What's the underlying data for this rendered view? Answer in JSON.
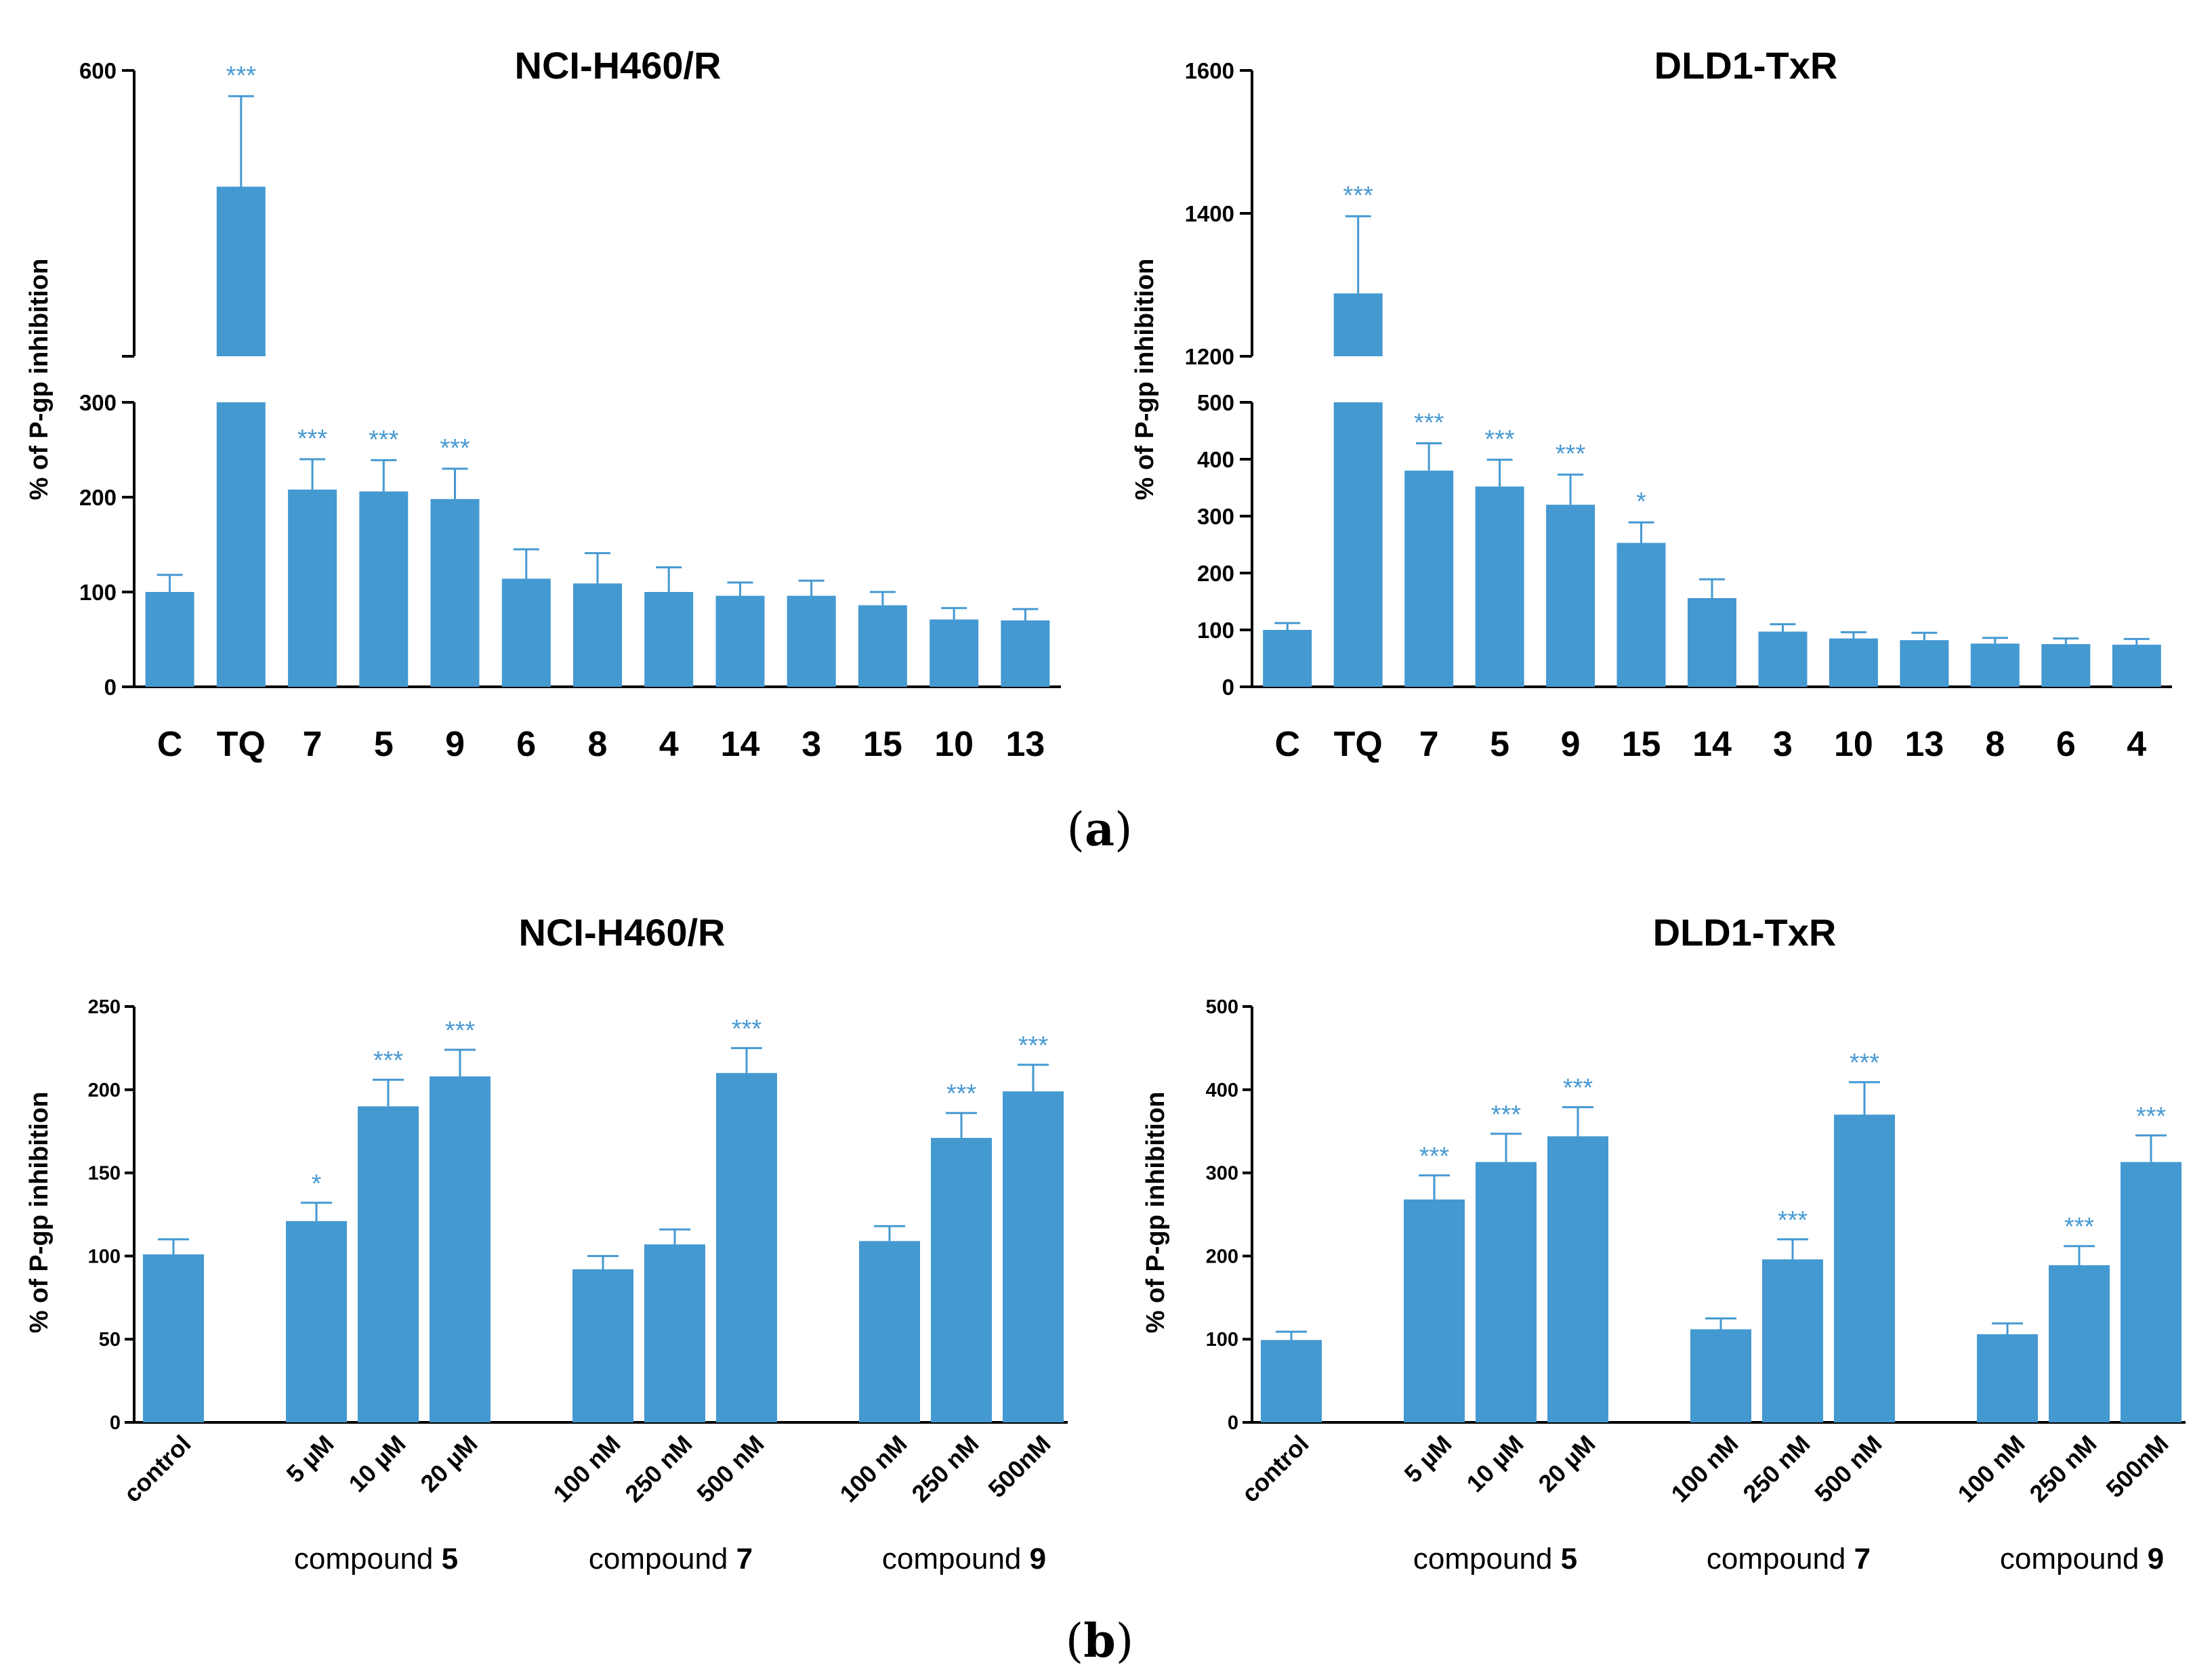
{
  "panel_labels": {
    "a": {
      "open": "(",
      "letter": "a",
      "close": ")"
    },
    "b": {
      "open": "(",
      "letter": "b",
      "close": ")"
    }
  },
  "colors": {
    "bar": "#4499d1",
    "significance": "#4a9ad3",
    "axis": "#000000"
  },
  "chart_data": [
    {
      "id": "a-left",
      "type": "bar",
      "title": "NCI-H460/R",
      "ylabel": "% of P-gp inhibition",
      "broken_axis": true,
      "lower_range": [
        0,
        300
      ],
      "lower_ticks": [
        "0",
        "100",
        "200",
        "300"
      ],
      "upper_range": [
        300,
        600
      ],
      "upper_ticks": [
        "600"
      ],
      "categories": [
        "C",
        "TQ",
        "7",
        "5",
        "9",
        "6",
        "8",
        "4",
        "14",
        "3",
        "15",
        "10",
        "13"
      ],
      "values": [
        100,
        478,
        208,
        206,
        198,
        114,
        109,
        100,
        96,
        96,
        86,
        71,
        70
      ],
      "errors": [
        18,
        95,
        32,
        33,
        32,
        31,
        32,
        26,
        14,
        16,
        14,
        12,
        12
      ],
      "significance": [
        "",
        "***",
        "***",
        "***",
        "***",
        "",
        "",
        "",
        "",
        "",
        "",
        "",
        ""
      ]
    },
    {
      "id": "a-right",
      "type": "bar",
      "title": "DLD1-TxR",
      "ylabel": "% of P-gp inhibition",
      "broken_axis": true,
      "lower_range": [
        0,
        500
      ],
      "lower_ticks": [
        "0",
        "100",
        "200",
        "300",
        "400",
        "500"
      ],
      "upper_range": [
        1200,
        1600
      ],
      "upper_ticks": [
        "1200",
        "1400",
        "1600"
      ],
      "categories": [
        "C",
        "TQ",
        "7",
        "5",
        "9",
        "15",
        "14",
        "3",
        "10",
        "13",
        "8",
        "6",
        "4"
      ],
      "values": [
        100,
        1288,
        380,
        352,
        320,
        253,
        156,
        97,
        85,
        82,
        76,
        75,
        74
      ],
      "errors": [
        12,
        108,
        48,
        47,
        53,
        36,
        33,
        13,
        11,
        13,
        10,
        10,
        10
      ],
      "significance": [
        "",
        "***",
        "***",
        "***",
        "***",
        "*",
        "",
        "",
        "",
        "",
        "",
        "",
        ""
      ]
    },
    {
      "id": "b-left",
      "type": "bar",
      "title": "NCI-H460/R",
      "ylabel": "% of P-gp inhibition",
      "ylim": [
        0,
        250
      ],
      "yticks": [
        "0",
        "50",
        "100",
        "150",
        "200",
        "250"
      ],
      "categories": [
        "control",
        "5 µM",
        "10 µM",
        "20 µM",
        "100 nM",
        "250 nM",
        "500 nM",
        "100 nM",
        "250 nM",
        "500nM"
      ],
      "values": [
        101,
        121,
        190,
        208,
        92,
        107,
        210,
        109,
        171,
        199
      ],
      "errors": [
        9,
        11,
        16,
        16,
        8,
        9,
        15,
        9,
        15,
        16
      ],
      "significance": [
        "",
        "*",
        "***",
        "***",
        "",
        "",
        "***",
        "",
        "***",
        "***"
      ],
      "groups": [
        {
          "prefix": "compound ",
          "number": "5"
        },
        {
          "prefix": "compound ",
          "number": "7"
        },
        {
          "prefix": "compound ",
          "number": "9"
        }
      ]
    },
    {
      "id": "b-right",
      "type": "bar",
      "title": "DLD1-TxR",
      "ylabel": "% of P-gp inhibition",
      "ylim": [
        0,
        500
      ],
      "yticks": [
        "0",
        "100",
        "200",
        "300",
        "400",
        "500"
      ],
      "categories": [
        "control",
        "5 µM",
        "10 µM",
        "20 µM",
        "100 nM",
        "250 nM",
        "500 nM",
        "100 nM",
        "250 nM",
        "500nM"
      ],
      "values": [
        99,
        268,
        313,
        344,
        112,
        196,
        370,
        106,
        189,
        313
      ],
      "errors": [
        10,
        29,
        34,
        35,
        13,
        24,
        39,
        13,
        23,
        32
      ],
      "significance": [
        "",
        "***",
        "***",
        "***",
        "",
        "***",
        "***",
        "",
        "***",
        "***"
      ],
      "groups": [
        {
          "prefix": "compound ",
          "number": "5"
        },
        {
          "prefix": "compound ",
          "number": "7"
        },
        {
          "prefix": "compound ",
          "number": "9"
        }
      ]
    }
  ]
}
